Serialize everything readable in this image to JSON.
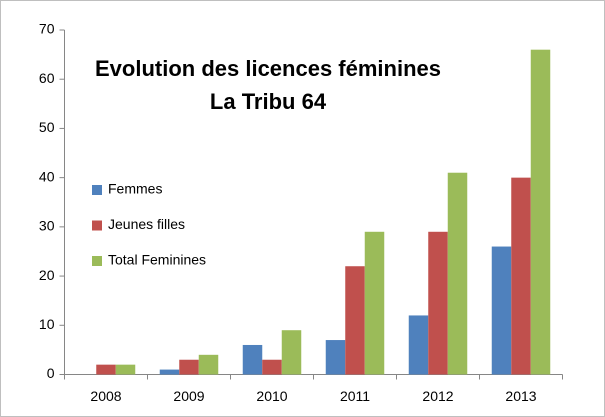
{
  "chart_data": {
    "type": "bar",
    "title": "Evolution des licences féminines",
    "subtitle": "La Tribu 64",
    "categories": [
      "2008",
      "2009",
      "2010",
      "2011",
      "2012",
      "2013"
    ],
    "series": [
      {
        "name": "Femmes",
        "color": "#4f81bd",
        "values": [
          0,
          1,
          6,
          7,
          12,
          26
        ]
      },
      {
        "name": "Jeunes filles",
        "color": "#c0504d",
        "values": [
          2,
          3,
          3,
          22,
          29,
          40
        ]
      },
      {
        "name": "Total Feminines",
        "color": "#9bbb59",
        "values": [
          2,
          4,
          9,
          29,
          41,
          66
        ]
      }
    ],
    "ylim": [
      0,
      70
    ],
    "yticks": [
      0,
      10,
      20,
      30,
      40,
      50,
      60,
      70
    ],
    "grid": false,
    "legend": "left"
  }
}
